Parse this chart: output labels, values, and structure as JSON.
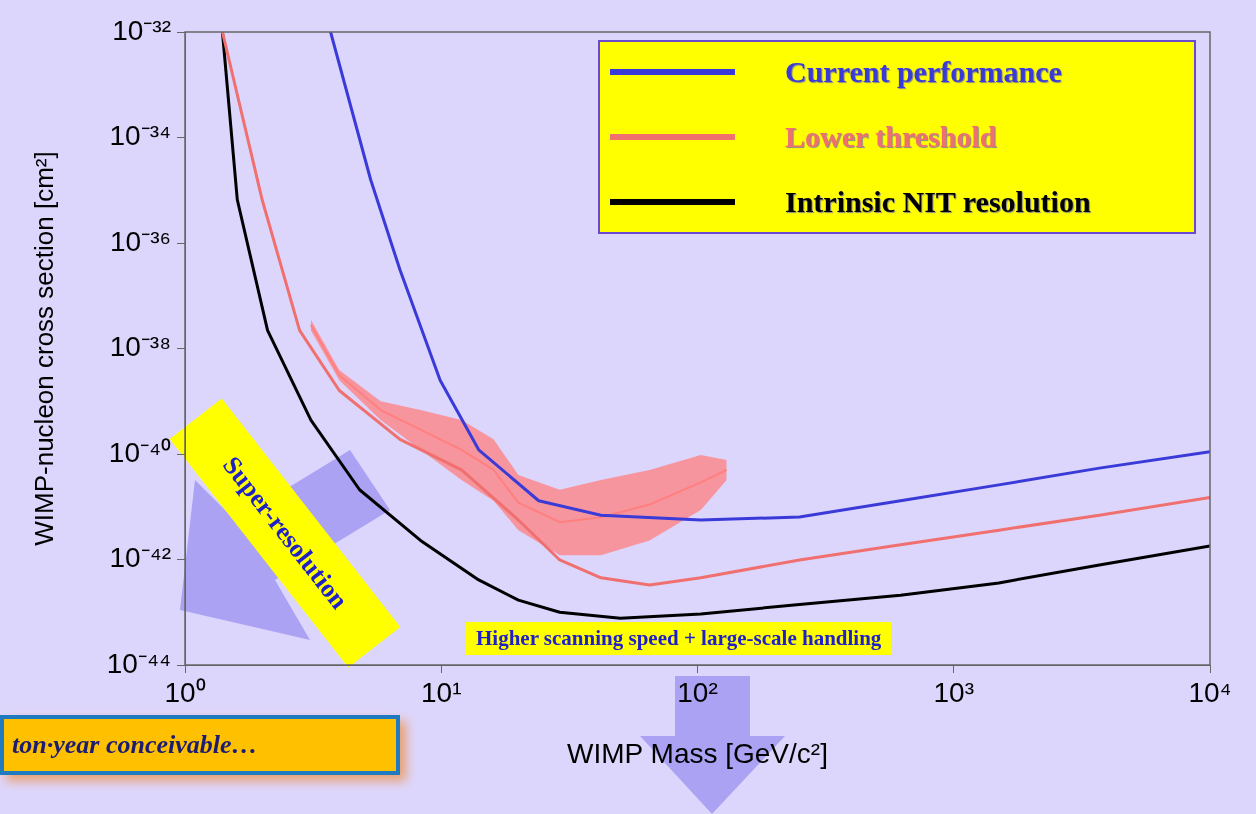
{
  "chart_data": {
    "type": "line",
    "xlabel": "WIMP Mass [GeV/c²]",
    "ylabel": "WIMP-nucleon cross section [cm²]",
    "log": "xy",
    "grid": false,
    "legend": "top right",
    "marker": "none",
    "line_style": "solid",
    "xlim": [
      1,
      10000
    ],
    "xticks": [
      {
        "value": 1,
        "label": "10⁰"
      },
      {
        "value": 10,
        "label": "10¹"
      },
      {
        "value": 100,
        "label": "10²"
      },
      {
        "value": 1000,
        "label": "10³"
      },
      {
        "value": 10000,
        "label": "10⁴"
      }
    ],
    "ylim": [
      1e-44,
      1e-32
    ],
    "yticks": [
      {
        "value": 1e-44,
        "label": "10⁻⁴⁴"
      },
      {
        "value": 1e-42,
        "label": "10⁻⁴²"
      },
      {
        "value": 1e-40,
        "label": "10⁻⁴⁰"
      },
      {
        "value": 1e-38,
        "label": "10⁻³⁸"
      },
      {
        "value": 1e-36,
        "label": "10⁻³⁶"
      },
      {
        "value": 1e-34,
        "label": "10⁻³⁴"
      },
      {
        "value": 1e-32,
        "label": "10⁻³²"
      }
    ],
    "series": [
      {
        "type": "line",
        "color": "#ff7f7f",
        "x": [
          3.1,
          4.0,
          5.8,
          8.3,
          12,
          16,
          20,
          29,
          42,
          65,
          103,
          130
        ],
        "values": [
          2.8e-38,
          3.1e-39,
          6.8e-40,
          2.9e-40,
          1.2e-40,
          5e-41,
          1.2e-41,
          5.1e-42,
          6.3e-42,
          1.1e-41,
          2.9e-41,
          5e-41
        ],
        "lower": [
          2.2e-38,
          2.5e-39,
          4.4e-40,
          1.2e-40,
          3.2e-41,
          1.3e-41,
          3.6e-42,
          1.2e-42,
          1.2e-42,
          2.3e-42,
          8.7e-42,
          3.2e-41
        ],
        "upper": [
          3.5e-38,
          3.9e-39,
          1e-39,
          6.8e-40,
          4.4e-40,
          1.9e-40,
          4e-41,
          2.1e-41,
          3.2e-41,
          5e-41,
          9.6e-41,
          7.7e-41
        ]
      },
      {
        "name": "Current performance",
        "color": "#3a3ad8",
        "x": [
          3.7,
          5.3,
          6.9,
          9.9,
          14,
          24,
          42,
          103,
          250,
          620,
          1500,
          3700,
          10000
        ],
        "values": [
          1e-32,
          1.6e-35,
          3.1e-37,
          2.5e-39,
          1.2e-40,
          1.3e-41,
          6.9e-42,
          5.6e-42,
          6.4e-42,
          1.3e-41,
          2.6e-41,
          5.4e-41,
          1.1e-40
        ]
      },
      {
        "name": "Lower threshold",
        "color": "#f07070",
        "x": [
          1.4,
          2.0,
          2.8,
          4.0,
          6.9,
          12,
          20,
          29,
          42,
          65,
          103,
          250,
          620,
          1500,
          3700,
          10000
        ],
        "values": [
          1e-32,
          6.6e-36,
          2.2e-38,
          1.6e-39,
          1.9e-40,
          5e-41,
          5.6e-42,
          9.8e-43,
          4.5e-43,
          3.3e-43,
          4.5e-43,
          9.8e-43,
          1.9e-42,
          3.6e-42,
          6.9e-42,
          1.5e-41
        ]
      },
      {
        "name": "Intrinsic NIT resolution",
        "color": "#000000",
        "x": [
          1.4,
          1.6,
          2.1,
          3.1,
          4.8,
          8.3,
          14,
          20,
          29,
          50,
          103,
          250,
          620,
          1500,
          3700,
          10000
        ],
        "values": [
          1e-32,
          6.6e-36,
          2.2e-38,
          4.4e-40,
          2.1e-41,
          2.3e-42,
          4.1e-43,
          1.7e-43,
          1e-43,
          7.7e-44,
          9.3e-44,
          1.4e-43,
          2.1e-43,
          3.6e-43,
          7.9e-43,
          1.8e-42
        ]
      }
    ],
    "annotations": [
      "Super-resolution",
      "Higher scanning speed + large-scale handling",
      "ton·year conceivable…"
    ]
  }
}
